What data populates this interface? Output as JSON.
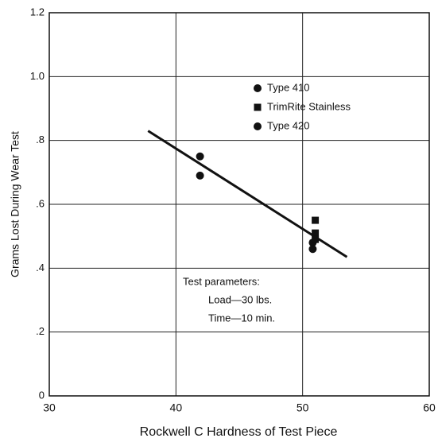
{
  "chart_data": {
    "type": "scatter",
    "x_label": "Rockwell C Hardness of Test Piece",
    "y_label": "Grams Lost During Wear Test",
    "xlim": [
      30,
      60
    ],
    "xticks": [
      30,
      40,
      50,
      60
    ],
    "ylim": [
      0,
      1.2
    ],
    "yticks": [
      0,
      {
        "value": 0.2,
        "label": ".2"
      },
      {
        "value": 0.4,
        "label": ".4"
      },
      {
        "value": 0.6,
        "label": ".6"
      },
      {
        "value": 0.8,
        "label": ".8"
      },
      {
        "value": 1.0,
        "label": "1.0"
      },
      1.2
    ],
    "grid": true,
    "series": [
      {
        "name": "Type 410",
        "color": "#111111",
        "marker": "circle",
        "x": [
          41.9,
          50.8
        ],
        "y": [
          0.75,
          0.48
        ]
      },
      {
        "name": "TrimRite Stainless",
        "color": "#111111",
        "marker": "square",
        "x": [
          51,
          51,
          51
        ],
        "y": [
          0.55,
          0.51,
          0.49
        ]
      },
      {
        "name": "Type 420",
        "color": "#111111",
        "marker": "circle",
        "x": [
          41.9,
          50.8
        ],
        "y": [
          0.69,
          0.46
        ]
      }
    ],
    "trend_line": {
      "x": [
        37.8,
        53.5
      ],
      "y": [
        0.83,
        0.435
      ],
      "color": "#111111"
    },
    "annotation": [
      "Test parameters:",
      "Load—30 lbs.",
      "Time—10 min."
    ]
  }
}
